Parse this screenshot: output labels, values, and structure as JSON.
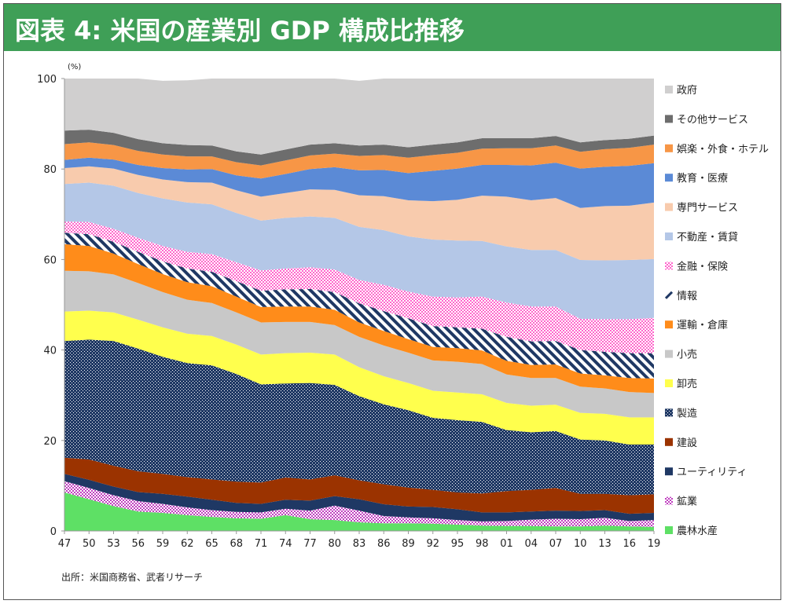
{
  "title": "図表 4: 米国の産業別 GDP 構成比推移",
  "source": "出所：米国商務省、武者リサーチ",
  "chart_data": {
    "type": "area",
    "stacked": true,
    "unit": "(%)",
    "ylim": [
      0,
      100
    ],
    "yticks": [
      "0",
      "20",
      "40",
      "60",
      "80",
      "100"
    ],
    "xticks": [
      "47",
      "50",
      "53",
      "56",
      "59",
      "62",
      "65",
      "68",
      "71",
      "74",
      "77",
      "80",
      "83",
      "86",
      "89",
      "92",
      "95",
      "98",
      "01",
      "04",
      "07",
      "10",
      "13",
      "16",
      "19"
    ],
    "x": [
      1947,
      1950,
      1953,
      1956,
      1959,
      1962,
      1965,
      1968,
      1971,
      1974,
      1977,
      1980,
      1983,
      1986,
      1989,
      1992,
      1995,
      1998,
      2001,
      2004,
      2007,
      2010,
      2013,
      2016,
      2019
    ],
    "legend_position": "right",
    "series": [
      {
        "name": "農林水産",
        "color": "#5ee065",
        "pattern": "solid",
        "values": [
          8.5,
          7,
          5.5,
          4.3,
          4,
          3.5,
          3.1,
          2.8,
          2.7,
          3.5,
          2.6,
          2.4,
          1.9,
          1.7,
          1.7,
          1.6,
          1.4,
          1.2,
          1.1,
          1.1,
          1.0,
          1.0,
          1.2,
          1.0,
          0.9
        ]
      },
      {
        "name": "鉱業",
        "color": "#c040c0",
        "pattern": "dots",
        "values": [
          2.5,
          2.5,
          2.4,
          2.3,
          2,
          1.7,
          1.5,
          1.4,
          1.4,
          1.4,
          1.9,
          3.2,
          2.6,
          1.6,
          1.3,
          1.2,
          1.0,
          0.9,
          1.1,
          1.4,
          1.7,
          1.6,
          1.7,
          1.2,
          1.5
        ]
      },
      {
        "name": "ユーティリティ",
        "color": "#1f3864",
        "pattern": "solid",
        "values": [
          1.6,
          1.8,
          1.9,
          2.0,
          2.2,
          2.4,
          2.3,
          2.0,
          1.9,
          2.0,
          2.2,
          2.1,
          2.5,
          2.6,
          2.4,
          2.5,
          2.4,
          2.0,
          1.9,
          1.8,
          1.8,
          1.8,
          1.7,
          1.6,
          1.6
        ]
      },
      {
        "name": "建設",
        "color": "#9b3300",
        "pattern": "solid",
        "values": [
          3.6,
          4.5,
          4.6,
          4.6,
          4.4,
          4.3,
          4.5,
          4.7,
          4.7,
          4.9,
          4.7,
          4.6,
          4.2,
          4.4,
          4.2,
          3.8,
          3.7,
          4.2,
          4.7,
          4.8,
          5.0,
          3.8,
          3.6,
          4.1,
          4.1
        ]
      },
      {
        "name": "製造",
        "color": "#1f3864",
        "pattern": "checker",
        "values": [
          25.8,
          26.5,
          27.6,
          27.1,
          25.9,
          25.2,
          25.2,
          23.8,
          21.7,
          20.8,
          21.3,
          20.0,
          18.6,
          17.7,
          17.1,
          15.9,
          16.0,
          15.8,
          13.5,
          12.7,
          12.6,
          12.0,
          11.8,
          11.2,
          11.0
        ]
      },
      {
        "name": "卸売",
        "color": "#ffff4d",
        "pattern": "solid",
        "values": [
          6.5,
          6.4,
          6.3,
          6.4,
          6.5,
          6.5,
          6.5,
          6.5,
          6.6,
          6.7,
          6.7,
          6.7,
          6.4,
          6.2,
          6.0,
          6.0,
          6.1,
          6.1,
          6.0,
          5.9,
          5.8,
          5.9,
          5.9,
          6.0,
          6.0
        ]
      },
      {
        "name": "小売",
        "color": "#c8c8c8",
        "pattern": "solid",
        "values": [
          9.0,
          8.7,
          8.4,
          8.1,
          7.8,
          7.5,
          7.3,
          7.1,
          7.1,
          6.9,
          6.8,
          6.5,
          6.7,
          6.8,
          6.7,
          6.7,
          6.8,
          6.7,
          6.3,
          6.1,
          5.9,
          5.8,
          5.6,
          5.6,
          5.4
        ]
      },
      {
        "name": "運輸・倉庫",
        "color": "#ff8c1a",
        "pattern": "solid",
        "values": [
          5.9,
          5.6,
          4.6,
          4.2,
          4.0,
          3.9,
          3.7,
          3.5,
          3.4,
          3.4,
          3.4,
          3.4,
          3.2,
          3.2,
          3.0,
          3.0,
          3.0,
          3.0,
          3.0,
          2.9,
          3.0,
          2.9,
          2.9,
          3.1,
          3.2
        ]
      },
      {
        "name": "情報",
        "color": "#1f3864",
        "pattern": "stripes",
        "values": [
          2.5,
          2.6,
          2.6,
          2.7,
          2.8,
          3.0,
          3.2,
          3.4,
          3.6,
          3.8,
          3.9,
          3.9,
          4.2,
          4.4,
          4.6,
          4.6,
          4.6,
          4.8,
          5.3,
          5.2,
          5.2,
          5.2,
          5.2,
          5.5,
          5.6
        ]
      },
      {
        "name": "金融・保険",
        "color": "#ff66cc",
        "pattern": "dots",
        "values": [
          2.5,
          2.7,
          2.9,
          3.1,
          3.4,
          3.7,
          3.9,
          4.2,
          4.5,
          4.6,
          4.8,
          5.0,
          5.2,
          5.8,
          5.9,
          6.5,
          6.6,
          7.1,
          7.6,
          7.7,
          7.6,
          6.9,
          7.2,
          7.5,
          7.8
        ]
      },
      {
        "name": "不動産・賃貸",
        "color": "#b4c7e7",
        "pattern": "solid",
        "values": [
          8.3,
          8.7,
          9.5,
          9.9,
          10.5,
          10.9,
          11.0,
          10.9,
          11.0,
          11.2,
          11.2,
          11.4,
          11.7,
          12.1,
          12.2,
          12.6,
          12.6,
          12.3,
          12.4,
          12.5,
          12.5,
          13.0,
          13.0,
          13.1,
          13.0
        ]
      },
      {
        "name": "専門サービス",
        "color": "#f8cbad",
        "pattern": "solid",
        "values": [
          3.5,
          3.6,
          3.8,
          4.0,
          4.2,
          4.5,
          4.8,
          5.0,
          5.3,
          5.5,
          6.0,
          6.2,
          7.0,
          7.5,
          8.0,
          8.5,
          9.0,
          10.0,
          11.0,
          11.0,
          11.5,
          11.5,
          12.0,
          12.0,
          12.5
        ]
      },
      {
        "name": "教育・医療",
        "color": "#5b8ad6",
        "pattern": "solid",
        "values": [
          1.8,
          1.9,
          2.0,
          2.2,
          2.5,
          2.8,
          3.0,
          3.3,
          4.0,
          4.2,
          4.5,
          5.0,
          5.5,
          5.8,
          6.0,
          6.7,
          6.9,
          6.8,
          7.0,
          7.7,
          7.8,
          8.7,
          8.7,
          8.8,
          8.7
        ]
      },
      {
        "name": "娯楽・外食・ホテル",
        "color": "#f79646",
        "pattern": "solid",
        "values": [
          3.5,
          3.4,
          3.2,
          3.1,
          3.0,
          2.9,
          2.8,
          2.9,
          2.9,
          3.0,
          3.0,
          3.0,
          3.2,
          3.3,
          3.4,
          3.5,
          3.5,
          3.6,
          3.7,
          3.8,
          3.8,
          3.7,
          3.9,
          4.0,
          4.1
        ]
      },
      {
        "name": "その他サービス",
        "color": "#6d6d6d",
        "pattern": "solid",
        "values": [
          3.0,
          2.8,
          2.7,
          2.6,
          2.5,
          2.5,
          2.4,
          2.4,
          2.4,
          2.4,
          2.4,
          2.3,
          2.3,
          2.3,
          2.3,
          2.3,
          2.3,
          2.3,
          2.2,
          2.2,
          2.1,
          2.1,
          2.0,
          2.0,
          2.0
        ]
      },
      {
        "name": "政府",
        "color": "#d0cfcf",
        "pattern": "solid",
        "values": [
          12.9,
          12.1,
          12.5,
          13.6,
          13.8,
          14.3,
          15.0,
          17.2,
          18.0,
          16.8,
          15.8,
          14.7,
          14.3,
          14.6,
          15.2,
          15.3,
          14.6,
          13.7,
          13.7,
          13.7,
          14.3,
          14.7,
          14.1,
          14.3,
          13.1
        ]
      }
    ]
  },
  "legend_icons": {
    "pattern_names": [
      "solid",
      "dots",
      "checker",
      "stripes"
    ]
  }
}
